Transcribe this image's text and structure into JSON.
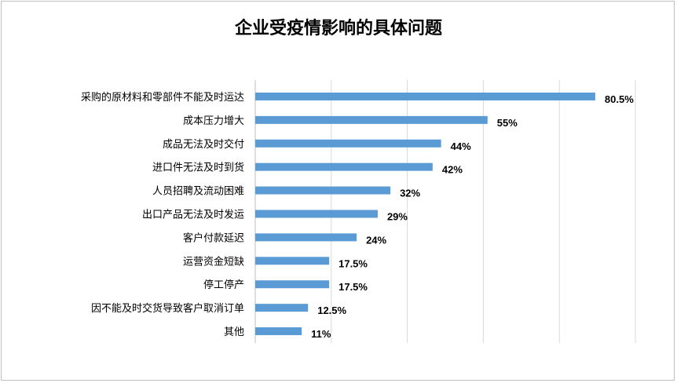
{
  "chart_data": {
    "type": "bar",
    "orientation": "horizontal",
    "title": "企业受疫情影响的具体问题",
    "categories": [
      "采购的原材料和零部件不能及时运达",
      "成本压力增大",
      "成品无法及时交付",
      "进口件无法及时到货",
      "人员招聘及流动困难",
      "出口产品无法及时发运",
      "客户付款延迟",
      "运营资金短缺",
      "停工停产",
      "因不能及时交货导致客户取消订单",
      "其他"
    ],
    "values": [
      80.5,
      55,
      44,
      42,
      32,
      29,
      24,
      17.5,
      17.5,
      12.5,
      11
    ],
    "labels": [
      "80.5%",
      "55%",
      "44%",
      "42%",
      "32%",
      "29%",
      "24%",
      "17.5%",
      "17.5%",
      "12.5%",
      "11%"
    ],
    "xlim": [
      0,
      90
    ],
    "grid": true,
    "bar_color": "#5b9bd5",
    "grid_color": "#d9d9d9"
  }
}
